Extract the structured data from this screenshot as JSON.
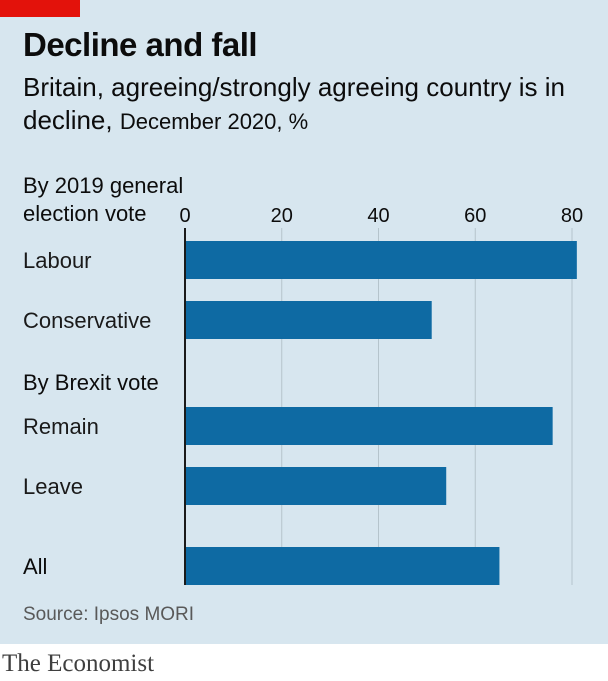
{
  "header": {
    "title": "Decline and fall",
    "subtitle_main": "Britain, agreeing/strongly agreeing country is in decline,",
    "subtitle_note": "December 2020, %"
  },
  "chart_data": {
    "type": "bar",
    "orientation": "horizontal",
    "xlim": [
      0,
      80
    ],
    "x_ticks": [
      0,
      20,
      40,
      60,
      80
    ],
    "grid": true,
    "groups": [
      {
        "label_lines": [
          "By 2019 general",
          "election vote"
        ]
      },
      {
        "label_lines": [
          "By Brexit vote"
        ]
      }
    ],
    "categories": [
      "Labour",
      "Conservative",
      "Remain",
      "Leave",
      "All"
    ],
    "values": [
      81,
      51,
      76,
      54,
      65
    ],
    "bar_color": "#0e6aa3"
  },
  "footer": {
    "source": "Source: Ipsos MORI",
    "brand": "The Economist"
  },
  "colors": {
    "background": "#d7e6ef",
    "accent": "#e3120b",
    "gridline": "#b5c4cc"
  }
}
